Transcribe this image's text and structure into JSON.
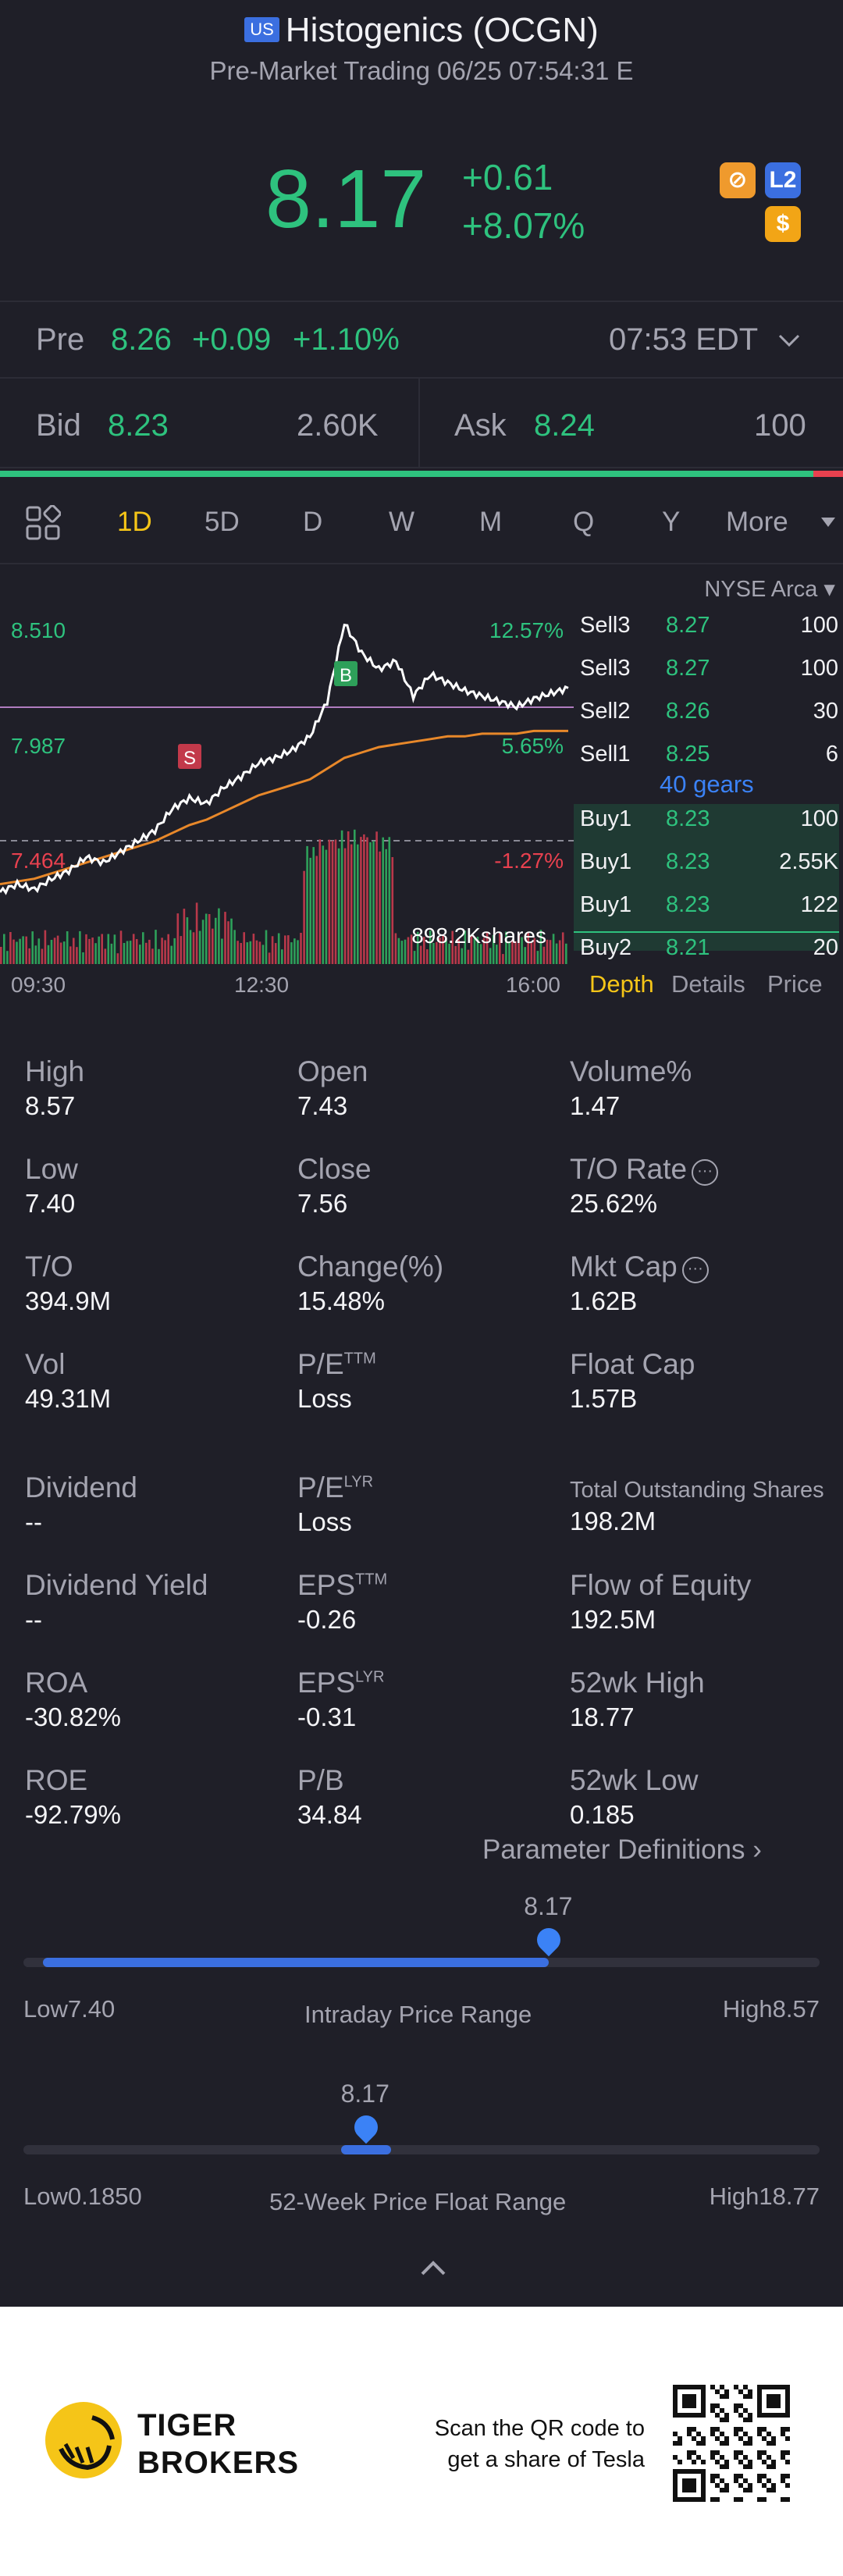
{
  "header": {
    "badge": "US",
    "title": "Histogenics (OCGN)",
    "subtitle": "Pre-Market Trading 06/25 07:54:31 E",
    "price": "8.17",
    "change": "+0.61",
    "change_pct": "+8.07%",
    "l2_badge": "L2",
    "usd_badge": "$"
  },
  "pre": {
    "label": "Pre",
    "price": "8.26",
    "change": "+0.09",
    "change_pct": "+1.10%",
    "time": "07:53 EDT"
  },
  "bid_ask": {
    "bid_label": "Bid",
    "bid_price": "8.23",
    "bid_size": "2.60K",
    "ask_label": "Ask",
    "ask_price": "8.24",
    "ask_size": "100",
    "bid_fraction": 0.965
  },
  "tabs": [
    "1D",
    "5D",
    "D",
    "W",
    "M",
    "Q",
    "Y",
    "More"
  ],
  "active_tab": "1D",
  "chart": {
    "y_high": "8.510",
    "y_mid": "7.987",
    "y_low": "7.464",
    "pct_high": "12.57%",
    "pct_mid": "5.65%",
    "pct_low": "-1.27%",
    "volume_label": "898.2Kshares",
    "x_start": "09:30",
    "x_mid": "12:30",
    "x_end": "16:00",
    "marker_b": "B",
    "marker_s": "S"
  },
  "chart_data": {
    "type": "line",
    "x_labels": [
      "09:30",
      "12:30",
      "16:00"
    ],
    "ylim": [
      7.464,
      8.51
    ],
    "prev_close": 7.56,
    "series": [],
    "price": [
      7.47,
      7.5,
      7.48,
      7.52,
      7.55,
      7.6,
      7.58,
      7.62,
      7.66,
      7.7,
      7.78,
      7.82,
      7.8,
      7.86,
      7.9,
      7.95,
      7.97,
      8.0,
      8.05,
      8.18,
      8.47,
      8.36,
      8.3,
      8.33,
      8.2,
      8.28,
      8.25,
      8.22,
      8.2,
      8.18,
      8.16,
      8.19,
      8.21,
      8.23
    ],
    "avg": [
      7.5,
      7.51,
      7.52,
      7.54,
      7.56,
      7.58,
      7.6,
      7.62,
      7.64,
      7.66,
      7.69,
      7.72,
      7.74,
      7.77,
      7.8,
      7.83,
      7.85,
      7.87,
      7.89,
      7.93,
      7.97,
      7.99,
      8.01,
      8.02,
      8.03,
      8.04,
      8.05,
      8.05,
      8.06,
      8.06,
      8.06,
      8.07,
      8.07,
      8.07
    ]
  },
  "book": {
    "exchange": "NYSE Arca",
    "gears": "40 gears",
    "sell": [
      {
        "label": "Sell3",
        "price": "8.27",
        "qty": "100"
      },
      {
        "label": "Sell3",
        "price": "8.27",
        "qty": "100"
      },
      {
        "label": "Sell2",
        "price": "8.26",
        "qty": "30"
      },
      {
        "label": "Sell1",
        "price": "8.25",
        "qty": "6"
      }
    ],
    "buy": [
      {
        "label": "Buy1",
        "price": "8.23",
        "qty": "100"
      },
      {
        "label": "Buy1",
        "price": "8.23",
        "qty": "2.55K"
      },
      {
        "label": "Buy1",
        "price": "8.23",
        "qty": "122"
      },
      {
        "label": "Buy2",
        "price": "8.21",
        "qty": "20"
      }
    ],
    "tab_depth": "Depth",
    "tab_details": "Details",
    "tab_price": "Price"
  },
  "stats": {
    "high_k": "High",
    "high_v": "8.57",
    "open_k": "Open",
    "open_v": "7.43",
    "volpct_k": "Volume%",
    "volpct_v": "1.47",
    "low_k": "Low",
    "low_v": "7.40",
    "close_k": "Close",
    "close_v": "7.56",
    "torate_k": "T/O Rate",
    "torate_v": "25.62%",
    "to_k": "T/O",
    "to_v": "394.9M",
    "changepct_k": "Change(%)",
    "changepct_v": "15.48%",
    "mktcap_k": "Mkt Cap",
    "mktcap_v": "1.62B",
    "vol_k": "Vol",
    "vol_v": "49.31M",
    "pe_ttm_k": "P/E",
    "pe_ttm_sup": "TTM",
    "pe_ttm_v": "Loss",
    "floatcap_k": "Float Cap",
    "floatcap_v": "1.57B",
    "dividend_k": "Dividend",
    "dividend_v": "--",
    "pe_lyr_k": "P/E",
    "pe_lyr_sup": "LYR",
    "pe_lyr_v": "Loss",
    "tos_k": "Total Outstanding Shares",
    "tos_v": "198.2M",
    "divyield_k": "Dividend Yield",
    "divyield_v": "--",
    "eps_ttm_k": "EPS",
    "eps_ttm_sup": "TTM",
    "eps_ttm_v": "-0.26",
    "foe_k": "Flow of Equity",
    "foe_v": "192.5M",
    "roa_k": "ROA",
    "roa_v": "-30.82%",
    "eps_lyr_k": "EPS",
    "eps_lyr_sup": "LYR",
    "eps_lyr_v": "-0.31",
    "wk52h_k": "52wk High",
    "wk52h_v": "18.77",
    "roe_k": "ROE",
    "roe_v": "-92.79%",
    "pb_k": "P/B",
    "pb_v": "34.84",
    "wk52l_k": "52wk Low",
    "wk52l_v": "0.185",
    "param_defs": "Parameter Definitions"
  },
  "ranges": {
    "intraday": {
      "current": "8.17",
      "low": "Low7.40",
      "high": "High8.57",
      "label": "Intraday Price Range",
      "fraction": 0.66
    },
    "week52": {
      "current": "8.17",
      "low": "Low0.1850",
      "high": "High18.77",
      "label": "52-Week Price Float Range",
      "fraction": 0.43
    }
  },
  "footer": {
    "brand_line1": "TIGER",
    "brand_line2": "BROKERS",
    "scan_line1": "Scan the QR code to",
    "scan_line2": "get a share of Tesla"
  },
  "colors": {
    "up": "#2ec27e",
    "down": "#e8414f",
    "accent": "#f5c518",
    "blue": "#3b6fe0"
  }
}
